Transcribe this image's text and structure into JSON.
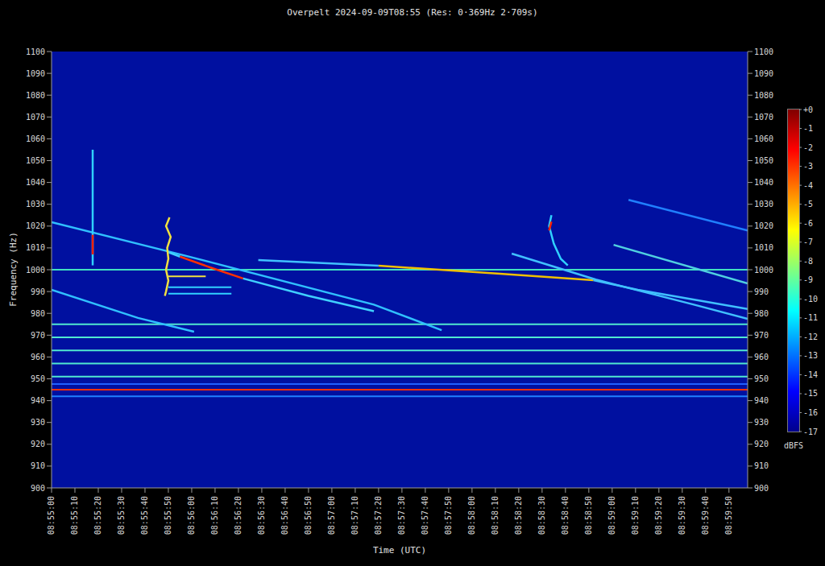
{
  "chart_data": {
    "type": "spectrogram",
    "title": "Overpelt 2024-09-09T08:55 (Res: 0·369Hz 2·709s)",
    "x_label": "Time (UTC)",
    "y_label": "Frequency (Hz)",
    "xlim": [
      0,
      298
    ],
    "xticks": [
      {
        "value": 0,
        "label": "08:55:00"
      },
      {
        "value": 10,
        "label": "08:55:10"
      },
      {
        "value": 20,
        "label": "08:55:20"
      },
      {
        "value": 30,
        "label": "08:55:30"
      },
      {
        "value": 40,
        "label": "08:55:40"
      },
      {
        "value": 50,
        "label": "08:55:50"
      },
      {
        "value": 60,
        "label": "08:56:00"
      },
      {
        "value": 70,
        "label": "08:56:10"
      },
      {
        "value": 80,
        "label": "08:56:20"
      },
      {
        "value": 90,
        "label": "08:56:30"
      },
      {
        "value": 100,
        "label": "08:56:40"
      },
      {
        "value": 110,
        "label": "08:56:50"
      },
      {
        "value": 120,
        "label": "08:57:00"
      },
      {
        "value": 130,
        "label": "08:57:10"
      },
      {
        "value": 140,
        "label": "08:57:20"
      },
      {
        "value": 150,
        "label": "08:57:30"
      },
      {
        "value": 160,
        "label": "08:57:40"
      },
      {
        "value": 170,
        "label": "08:57:50"
      },
      {
        "value": 180,
        "label": "08:58:00"
      },
      {
        "value": 190,
        "label": "08:58:10"
      },
      {
        "value": 200,
        "label": "08:58:20"
      },
      {
        "value": 210,
        "label": "08:58:30"
      },
      {
        "value": 220,
        "label": "08:58:40"
      },
      {
        "value": 230,
        "label": "08:58:50"
      },
      {
        "value": 240,
        "label": "08:59:00"
      },
      {
        "value": 250,
        "label": "08:59:10"
      },
      {
        "value": 260,
        "label": "08:59:20"
      },
      {
        "value": 270,
        "label": "08:59:30"
      },
      {
        "value": 280,
        "label": "08:59:40"
      },
      {
        "value": 290,
        "label": "08:59:50"
      }
    ],
    "ylim": [
      900,
      1100
    ],
    "yticks": [
      900,
      910,
      920,
      930,
      940,
      950,
      960,
      970,
      980,
      990,
      1000,
      1010,
      1020,
      1030,
      1040,
      1050,
      1060,
      1070,
      1080,
      1090,
      1100
    ],
    "grid": false,
    "colorbar": {
      "label": "dBFS",
      "range": [
        -17,
        0
      ],
      "ticks": [
        {
          "value": 0,
          "label": "+0"
        },
        -1,
        -2,
        -3,
        -4,
        -5,
        -6,
        -7,
        -8,
        -9,
        -10,
        -11,
        -12,
        -13,
        -14,
        -15,
        -16,
        -17
      ],
      "colors": [
        "#800000",
        "#ff0000",
        "#ff8000",
        "#ffff00",
        "#80ff80",
        "#00ffff",
        "#0080ff",
        "#0000ff",
        "#00008c"
      ]
    },
    "series": [
      {
        "color": "#40e0c0",
        "x": [
          0,
          298
        ],
        "values": [
          1000,
          1000
        ]
      },
      {
        "color": "#50e8d0",
        "x": [
          0,
          298
        ],
        "values": [
          975,
          975
        ]
      },
      {
        "color": "#50e8d0",
        "x": [
          0,
          298
        ],
        "values": [
          969,
          969
        ]
      },
      {
        "color": "#50e8d0",
        "x": [
          0,
          298
        ],
        "values": [
          963,
          963
        ]
      },
      {
        "color": "#50e8d0",
        "x": [
          0,
          298
        ],
        "values": [
          957,
          957
        ]
      },
      {
        "color": "#50e8d0",
        "x": [
          0,
          298
        ],
        "values": [
          951,
          951
        ]
      },
      {
        "color": "#2060ff",
        "x": [
          0,
          298
        ],
        "values": [
          947.6,
          947.6
        ]
      },
      {
        "color": "#ff3000",
        "x": [
          0,
          298
        ],
        "values": [
          945,
          945
        ]
      },
      {
        "color": "#2080ff",
        "x": [
          0,
          298
        ],
        "values": [
          942,
          942
        ]
      },
      {
        "color": "#30c0ff",
        "x": [
          0,
          57,
          138,
          167
        ],
        "values": [
          1021.8,
          1006.5,
          984,
          972.3
        ]
      },
      {
        "color": "#30c0ff",
        "x": [
          0,
          37,
          61
        ],
        "values": [
          990.8,
          977.9,
          971.6
        ]
      },
      {
        "color": "#40d0ff",
        "x": [
          50,
          55
        ],
        "values": [
          1008,
          1006
        ]
      },
      {
        "color": "#ff3000",
        "x": [
          55,
          68,
          82
        ],
        "values": [
          1006,
          1001,
          996
        ]
      },
      {
        "color": "#40d0ff",
        "x": [
          82,
          110,
          138
        ],
        "values": [
          996,
          988,
          981
        ]
      },
      {
        "color": "#40c0ff",
        "x": [
          88.5,
          140
        ],
        "values": [
          1004.4,
          1001.8
        ]
      },
      {
        "color": "#f0c000",
        "x": [
          140,
          192,
          232
        ],
        "values": [
          1001.8,
          998.2,
          995.2
        ]
      },
      {
        "color": "#40c0ff",
        "x": [
          232,
          251,
          298
        ],
        "values": [
          995.2,
          990.8,
          982
        ]
      },
      {
        "color": "#40c0ff",
        "x": [
          197,
          233,
          275,
          298
        ],
        "values": [
          1007.4,
          995.5,
          984,
          977.5
        ]
      },
      {
        "color": "#50d0e0",
        "x": [
          240.6,
          298
        ],
        "values": [
          1011.4,
          993.7
        ]
      },
      {
        "color": "#2080ff",
        "x": [
          247,
          298
        ],
        "values": [
          1032,
          1018
        ]
      },
      {
        "color": "#30d0ff",
        "x": [
          17.6,
          17.6
        ],
        "values": [
          1002,
          1055
        ]
      },
      {
        "color": "#ff2000",
        "x": [
          17.6,
          17.6
        ],
        "values": [
          1007,
          1016
        ]
      },
      {
        "color": "#f0e040",
        "x": [
          50.5,
          49,
          51,
          49.5,
          50,
          49,
          50,
          49,
          48.5
        ],
        "values": [
          1024,
          1020,
          1015,
          1010,
          1005,
          1000,
          995,
          990,
          988
        ]
      },
      {
        "color": "#f0e040",
        "x": [
          50,
          66
        ],
        "values": [
          997,
          997
        ]
      },
      {
        "color": "#30d0ff",
        "x": [
          50,
          77
        ],
        "values": [
          989,
          989
        ]
      },
      {
        "color": "#30d0ff",
        "x": [
          50,
          77
        ],
        "values": [
          992,
          992
        ]
      },
      {
        "color": "#30d0ff",
        "x": [
          214,
          213,
          215,
          218,
          221
        ],
        "values": [
          1025,
          1020,
          1012,
          1005,
          1002
        ]
      },
      {
        "color": "#ff2000",
        "x": [
          213,
          214
        ],
        "values": [
          1018,
          1022
        ]
      }
    ]
  }
}
